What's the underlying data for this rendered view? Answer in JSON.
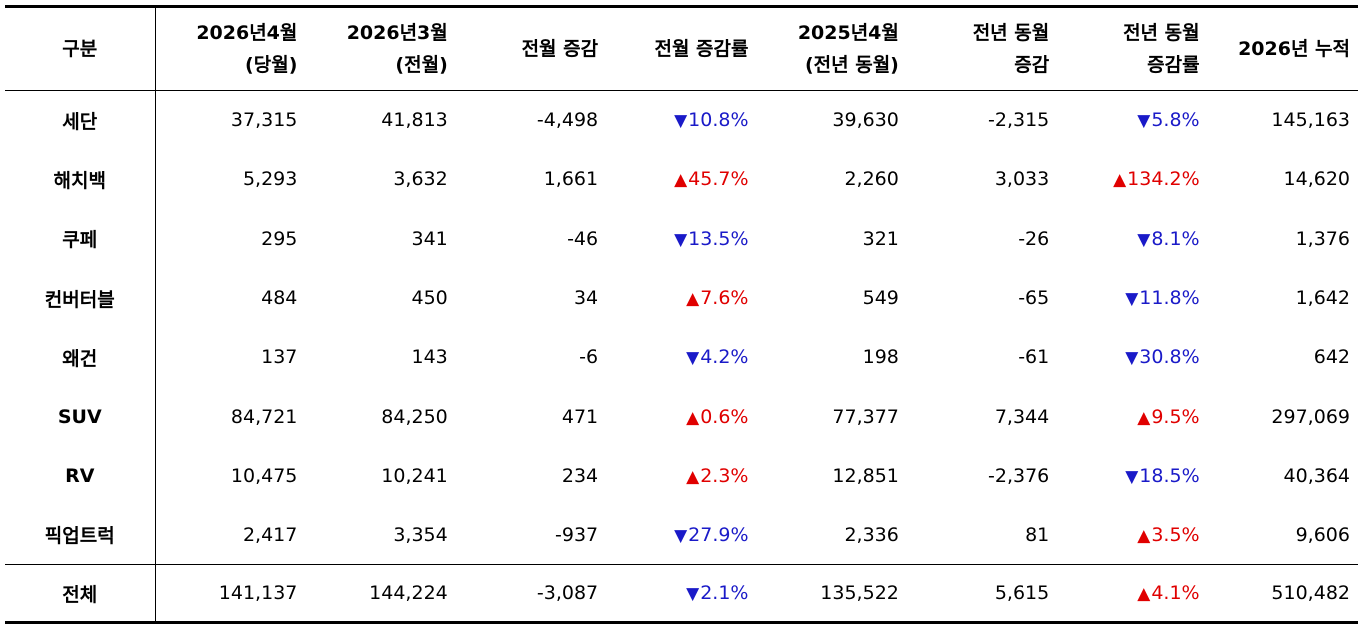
{
  "headers": [
    {
      "lines": [
        "구분"
      ]
    },
    {
      "lines": [
        "2026년4월",
        "(당월)"
      ]
    },
    {
      "lines": [
        "2026년3월",
        "(전월)"
      ]
    },
    {
      "lines": [
        "전월 증감"
      ]
    },
    {
      "lines": [
        "전월 증감률"
      ]
    },
    {
      "lines": [
        "2025년4월",
        "(전년 동월)"
      ]
    },
    {
      "lines": [
        "전년 동월",
        "증감"
      ]
    },
    {
      "lines": [
        "전년 동월",
        "증감률"
      ]
    },
    {
      "lines": [
        "2026년 누적"
      ]
    }
  ],
  "rows": [
    {
      "category": "세단",
      "cur": "37,315",
      "prev": "41,813",
      "mom": "-4,498",
      "mom_rate": {
        "dir": "down",
        "icon": "▼",
        "text": "10.8%"
      },
      "ly": "39,630",
      "yoy": "-2,315",
      "yoy_rate": {
        "dir": "down",
        "icon": "▼",
        "text": "5.8%"
      },
      "ytd": "145,163"
    },
    {
      "category": "해치백",
      "cur": "5,293",
      "prev": "3,632",
      "mom": "1,661",
      "mom_rate": {
        "dir": "up",
        "icon": "▲",
        "text": "45.7%"
      },
      "ly": "2,260",
      "yoy": "3,033",
      "yoy_rate": {
        "dir": "up",
        "icon": "▲",
        "text": "134.2%"
      },
      "ytd": "14,620"
    },
    {
      "category": "쿠페",
      "cur": "295",
      "prev": "341",
      "mom": "-46",
      "mom_rate": {
        "dir": "down",
        "icon": "▼",
        "text": "13.5%"
      },
      "ly": "321",
      "yoy": "-26",
      "yoy_rate": {
        "dir": "down",
        "icon": "▼",
        "text": "8.1%"
      },
      "ytd": "1,376"
    },
    {
      "category": "컨버터블",
      "cur": "484",
      "prev": "450",
      "mom": "34",
      "mom_rate": {
        "dir": "up",
        "icon": "▲",
        "text": "7.6%"
      },
      "ly": "549",
      "yoy": "-65",
      "yoy_rate": {
        "dir": "down",
        "icon": "▼",
        "text": "11.8%"
      },
      "ytd": "1,642"
    },
    {
      "category": "왜건",
      "cur": "137",
      "prev": "143",
      "mom": "-6",
      "mom_rate": {
        "dir": "down",
        "icon": "▼",
        "text": "4.2%"
      },
      "ly": "198",
      "yoy": "-61",
      "yoy_rate": {
        "dir": "down",
        "icon": "▼",
        "text": "30.8%"
      },
      "ytd": "642"
    },
    {
      "category": "SUV",
      "cur": "84,721",
      "prev": "84,250",
      "mom": "471",
      "mom_rate": {
        "dir": "up",
        "icon": "▲",
        "text": "0.6%"
      },
      "ly": "77,377",
      "yoy": "7,344",
      "yoy_rate": {
        "dir": "up",
        "icon": "▲",
        "text": "9.5%"
      },
      "ytd": "297,069"
    },
    {
      "category": "RV",
      "cur": "10,475",
      "prev": "10,241",
      "mom": "234",
      "mom_rate": {
        "dir": "up",
        "icon": "▲",
        "text": "2.3%"
      },
      "ly": "12,851",
      "yoy": "-2,376",
      "yoy_rate": {
        "dir": "down",
        "icon": "▼",
        "text": "18.5%"
      },
      "ytd": "40,364"
    },
    {
      "category": "픽업트럭",
      "cur": "2,417",
      "prev": "3,354",
      "mom": "-937",
      "mom_rate": {
        "dir": "down",
        "icon": "▼",
        "text": "27.9%"
      },
      "ly": "2,336",
      "yoy": "81",
      "yoy_rate": {
        "dir": "up",
        "icon": "▲",
        "text": "3.5%"
      },
      "ytd": "9,606"
    }
  ],
  "total": {
    "category": "전체",
    "cur": "141,137",
    "prev": "144,224",
    "mom": "-3,087",
    "mom_rate": {
      "dir": "down",
      "icon": "▼",
      "text": "2.1%"
    },
    "ly": "135,522",
    "yoy": "5,615",
    "yoy_rate": {
      "dir": "up",
      "icon": "▲",
      "text": "4.1%"
    },
    "ytd": "510,482"
  },
  "colors": {
    "up": "#e00000",
    "down": "#1a1ac8"
  }
}
